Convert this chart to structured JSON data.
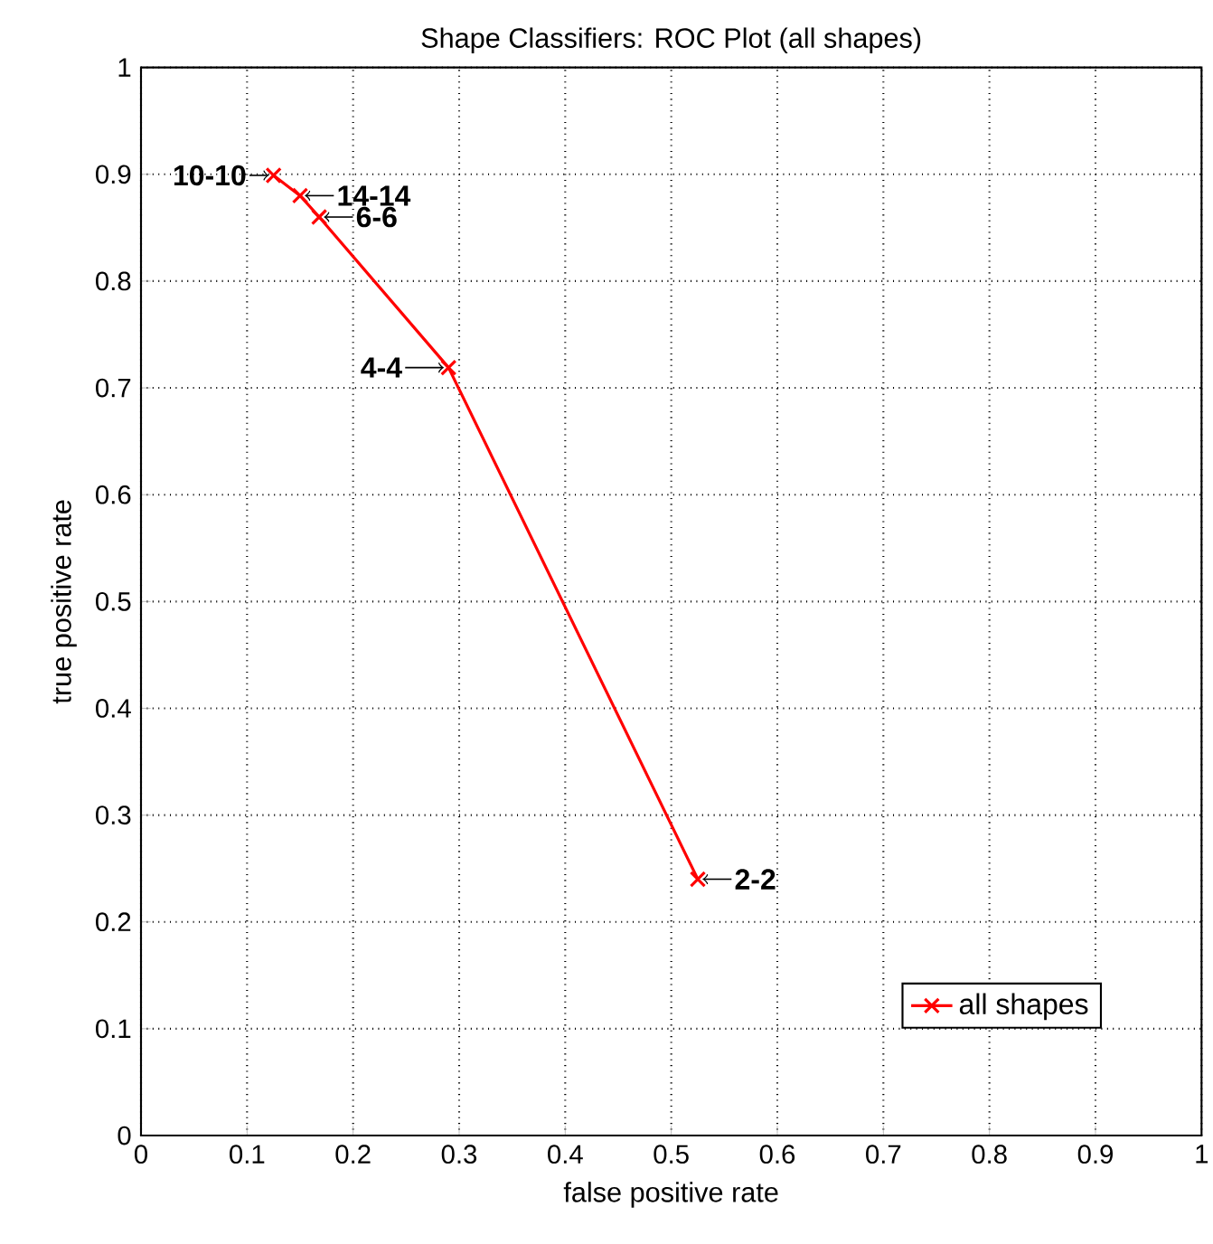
{
  "chart_data": {
    "type": "line",
    "title": "Shape Classifiers: ROC Plot (all shapes)",
    "xlabel": "false positive rate",
    "ylabel": "true positive rate",
    "x": [
      0.125,
      0.15,
      0.168,
      0.29,
      0.525
    ],
    "series": [
      {
        "name": "all shapes",
        "color": "#ff0000",
        "values": [
          0.899,
          0.88,
          0.86,
          0.719,
          0.24
        ]
      }
    ],
    "xlim": [
      0,
      1
    ],
    "ylim": [
      0,
      1
    ],
    "xticks": [
      0,
      0.1,
      0.2,
      0.3,
      0.4,
      0.5,
      0.6,
      0.7,
      0.8,
      0.9,
      1
    ],
    "yticks": [
      0,
      0.1,
      0.2,
      0.3,
      0.4,
      0.5,
      0.6,
      0.7,
      0.8,
      0.9,
      1
    ],
    "grid": true,
    "legend": "bottom right",
    "marker": "cross",
    "line_style": "solid",
    "annotations": [
      {
        "text": "10-10",
        "x": 0.125,
        "y": 0.899
      },
      {
        "text": "14-14",
        "x": 0.15,
        "y": 0.88
      },
      {
        "text": "6-6",
        "x": 0.168,
        "y": 0.86
      },
      {
        "text": "4-4",
        "x": 0.29,
        "y": 0.719
      },
      {
        "text": "2-2",
        "x": 0.525,
        "y": 0.24
      }
    ]
  }
}
